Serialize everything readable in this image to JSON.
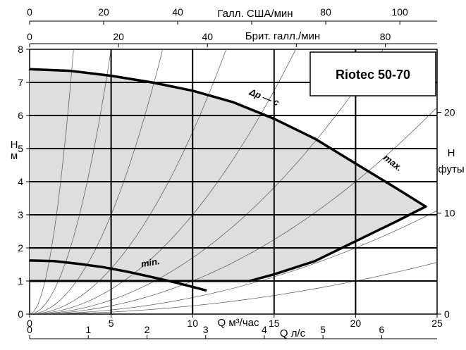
{
  "chart_data": {
    "type": "line",
    "title": "Riotec 50-70",
    "x_axis": {
      "label": "Q м³/час",
      "range": [
        0,
        25
      ],
      "ticks": [
        0,
        5,
        10,
        15,
        20,
        25
      ]
    },
    "y_axis": {
      "label": "H м",
      "label_lines": [
        "Н",
        "м"
      ],
      "range": [
        0,
        8
      ],
      "ticks": [
        0,
        1,
        2,
        3,
        4,
        5,
        6,
        7,
        8
      ]
    },
    "y_axis_right": {
      "label": "Н футы",
      "label_lines": [
        "Н",
        "футы"
      ],
      "ticks": [
        0,
        10,
        20
      ]
    },
    "x_axis_top_1": {
      "label": "Галл. США/мин",
      "ticks": [
        0,
        20,
        40,
        80,
        100
      ]
    },
    "x_axis_top_2": {
      "label": "Брит. галл./мин",
      "ticks": [
        0,
        20,
        40,
        80
      ]
    },
    "x_axis_bottom_2": {
      "label": "Q л/с",
      "ticks": [
        0,
        1,
        2,
        3,
        4,
        5,
        6
      ]
    },
    "curve_labels": {
      "max": "max.",
      "min": "min.",
      "dp_c": "Δp — c"
    },
    "series": [
      {
        "name": "max.",
        "x": [
          0,
          2.5,
          5,
          7.5,
          10,
          12.5,
          15,
          17.5,
          20,
          22.5,
          24.3
        ],
        "y": [
          7.4,
          7.35,
          7.2,
          7.0,
          6.75,
          6.4,
          5.9,
          5.3,
          4.55,
          3.8,
          3.25
        ]
      },
      {
        "name": "min.",
        "x": [
          0,
          1.5,
          3,
          4.5,
          6,
          7.5,
          9,
          10.8
        ],
        "y": [
          1.62,
          1.6,
          1.52,
          1.42,
          1.28,
          1.12,
          0.95,
          0.72
        ]
      },
      {
        "name": "",
        "x": [
          13.5,
          15,
          17.5,
          20,
          22.5,
          24.3
        ],
        "y": [
          1.0,
          1.2,
          1.6,
          2.2,
          2.8,
          3.25
        ]
      },
      {
        "name": "Δp — c",
        "x": [
          0,
          13.5
        ],
        "y": [
          1.0,
          1.0
        ]
      }
    ],
    "system_curve_k": [
      1.1,
      0.32,
      0.12,
      0.055,
      0.03,
      0.017,
      0.01,
      0.005,
      0.0025
    ],
    "grid": true,
    "shaded_region": "between max. and min. curves"
  }
}
